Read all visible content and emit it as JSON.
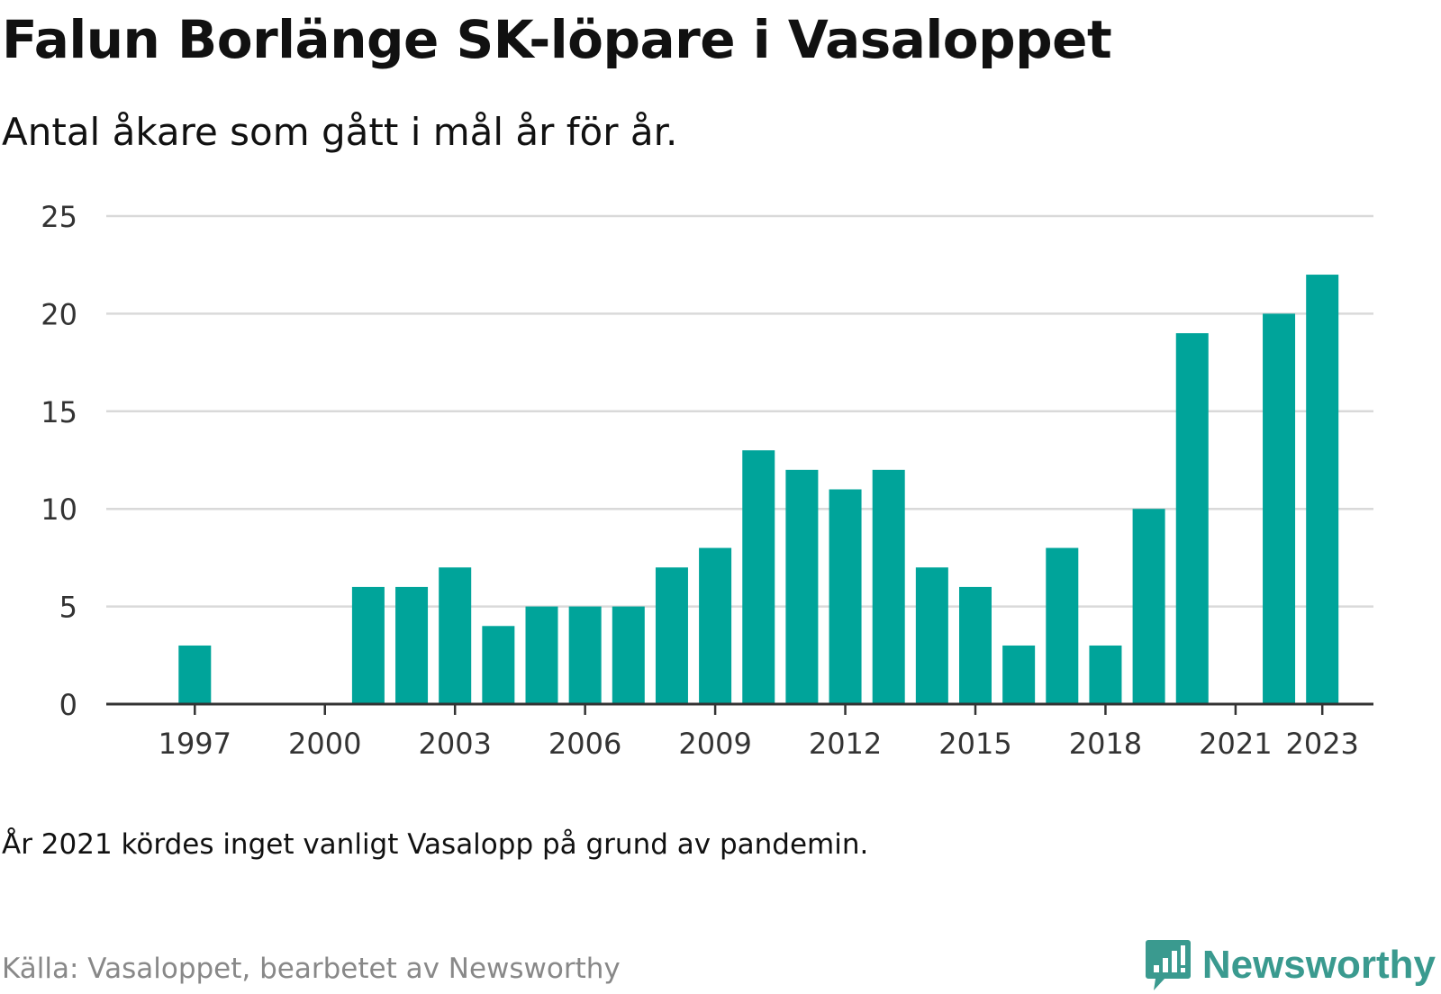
{
  "header": {
    "title": "Falun Borlänge SK-löpare i Vasaloppet",
    "subtitle": "Antal åkare som gått i mål år för år."
  },
  "footer": {
    "note": "År 2021 kördes inget vanligt Vasalopp på grund av pandemin.",
    "source": "Källa: Vasaloppet, bearbetet av Newsworthy",
    "brand": "Newsworthy",
    "brand_icon": "newsworthy-logo-icon"
  },
  "colors": {
    "bar": "#00a49a",
    "grid": "#d9d9d9",
    "axis": "#333333",
    "brand": "#3a9a8f"
  },
  "chart_data": {
    "type": "bar",
    "title": "Falun Borlänge SK-löpare i Vasaloppet",
    "subtitle": "Antal åkare som gått i mål år för år.",
    "xlabel": "",
    "ylabel": "",
    "ylim": [
      0,
      25
    ],
    "yticks": [
      0,
      5,
      10,
      15,
      20,
      25
    ],
    "xticks": [
      1997,
      2000,
      2003,
      2006,
      2009,
      2012,
      2015,
      2018,
      2021,
      2023
    ],
    "grid": true,
    "legend": false,
    "categories": [
      1997,
      1998,
      1999,
      2000,
      2001,
      2002,
      2003,
      2004,
      2005,
      2006,
      2007,
      2008,
      2009,
      2010,
      2011,
      2012,
      2013,
      2014,
      2015,
      2016,
      2017,
      2018,
      2019,
      2020,
      2021,
      2022,
      2023
    ],
    "values": [
      3,
      0,
      0,
      0,
      6,
      6,
      7,
      4,
      5,
      5,
      5,
      7,
      8,
      13,
      12,
      11,
      12,
      7,
      6,
      3,
      8,
      3,
      10,
      19,
      0,
      20,
      22
    ]
  }
}
